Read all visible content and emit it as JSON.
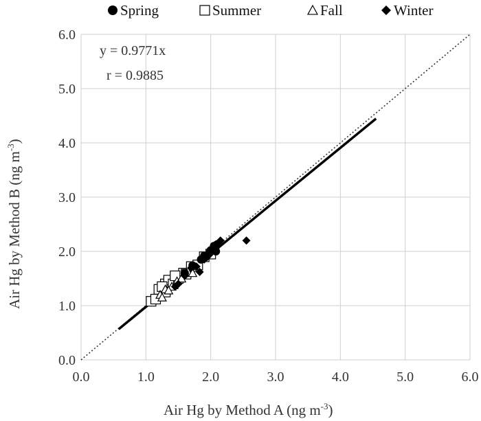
{
  "chart_data": {
    "type": "scatter",
    "xlabel": "Air Hg by Method A  (ng m",
    "xlabel_sup": "-3",
    "xlabel_end": ")",
    "ylabel": "Air Hg by Method B  (ng m",
    "ylabel_sup": "-3",
    "ylabel_end": ")",
    "xlim": [
      0,
      6
    ],
    "ylim": [
      0,
      6
    ],
    "x_ticks": [
      "0.0",
      "1.0",
      "2.0",
      "3.0",
      "4.0",
      "5.0",
      "6.0"
    ],
    "y_ticks": [
      "0.0",
      "1.0",
      "2.0",
      "3.0",
      "4.0",
      "5.0",
      "6.0"
    ],
    "grid": true,
    "legend_position": "top",
    "annotations": {
      "equation": "y = 0.9771x",
      "r": "r = 0.9885"
    },
    "reference_line": {
      "style": "dotted",
      "x": [
        0,
        6
      ],
      "y": [
        0,
        6
      ]
    },
    "fit_line": {
      "slope": 0.9771,
      "x": [
        0.58,
        4.55
      ]
    },
    "series": [
      {
        "name": "Spring",
        "marker": "circle",
        "color": "#000000",
        "points": [
          [
            2.1,
            2.13
          ],
          [
            2.05,
            2.1
          ],
          [
            2.08,
            2.0
          ],
          [
            2.0,
            2.02
          ],
          [
            1.98,
            1.97
          ],
          [
            1.9,
            1.92
          ],
          [
            1.72,
            1.74
          ],
          [
            1.6,
            1.6
          ],
          [
            1.85,
            1.85
          ],
          [
            2.07,
            2.05
          ]
        ]
      },
      {
        "name": "Summer",
        "marker": "square",
        "color": "#000000",
        "points": [
          [
            1.08,
            1.08
          ],
          [
            1.15,
            1.12
          ],
          [
            1.2,
            1.3
          ],
          [
            1.3,
            1.4
          ],
          [
            1.35,
            1.47
          ],
          [
            1.42,
            1.4
          ],
          [
            1.5,
            1.5
          ],
          [
            1.58,
            1.6
          ],
          [
            1.62,
            1.58
          ],
          [
            1.7,
            1.72
          ],
          [
            1.8,
            1.75
          ],
          [
            1.9,
            1.9
          ],
          [
            2.0,
            1.95
          ],
          [
            1.3,
            1.25
          ],
          [
            1.45,
            1.55
          ],
          [
            1.25,
            1.35
          ]
        ]
      },
      {
        "name": "Fall",
        "marker": "triangle",
        "color": "#000000",
        "points": [
          [
            1.22,
            1.2
          ],
          [
            1.3,
            1.3
          ],
          [
            1.4,
            1.35
          ],
          [
            1.48,
            1.45
          ],
          [
            1.35,
            1.28
          ],
          [
            1.55,
            1.5
          ],
          [
            1.25,
            1.15
          ],
          [
            1.65,
            1.62
          ],
          [
            1.72,
            1.6
          ]
        ]
      },
      {
        "name": "Winter",
        "marker": "diamond",
        "color": "#000000",
        "points": [
          [
            2.55,
            2.2
          ],
          [
            2.15,
            2.2
          ],
          [
            1.83,
            1.62
          ],
          [
            1.7,
            1.7
          ],
          [
            1.9,
            1.85
          ],
          [
            1.5,
            1.4
          ],
          [
            1.6,
            1.55
          ],
          [
            1.45,
            1.35
          ],
          [
            1.78,
            1.72
          ],
          [
            1.95,
            1.9
          ]
        ]
      }
    ]
  }
}
